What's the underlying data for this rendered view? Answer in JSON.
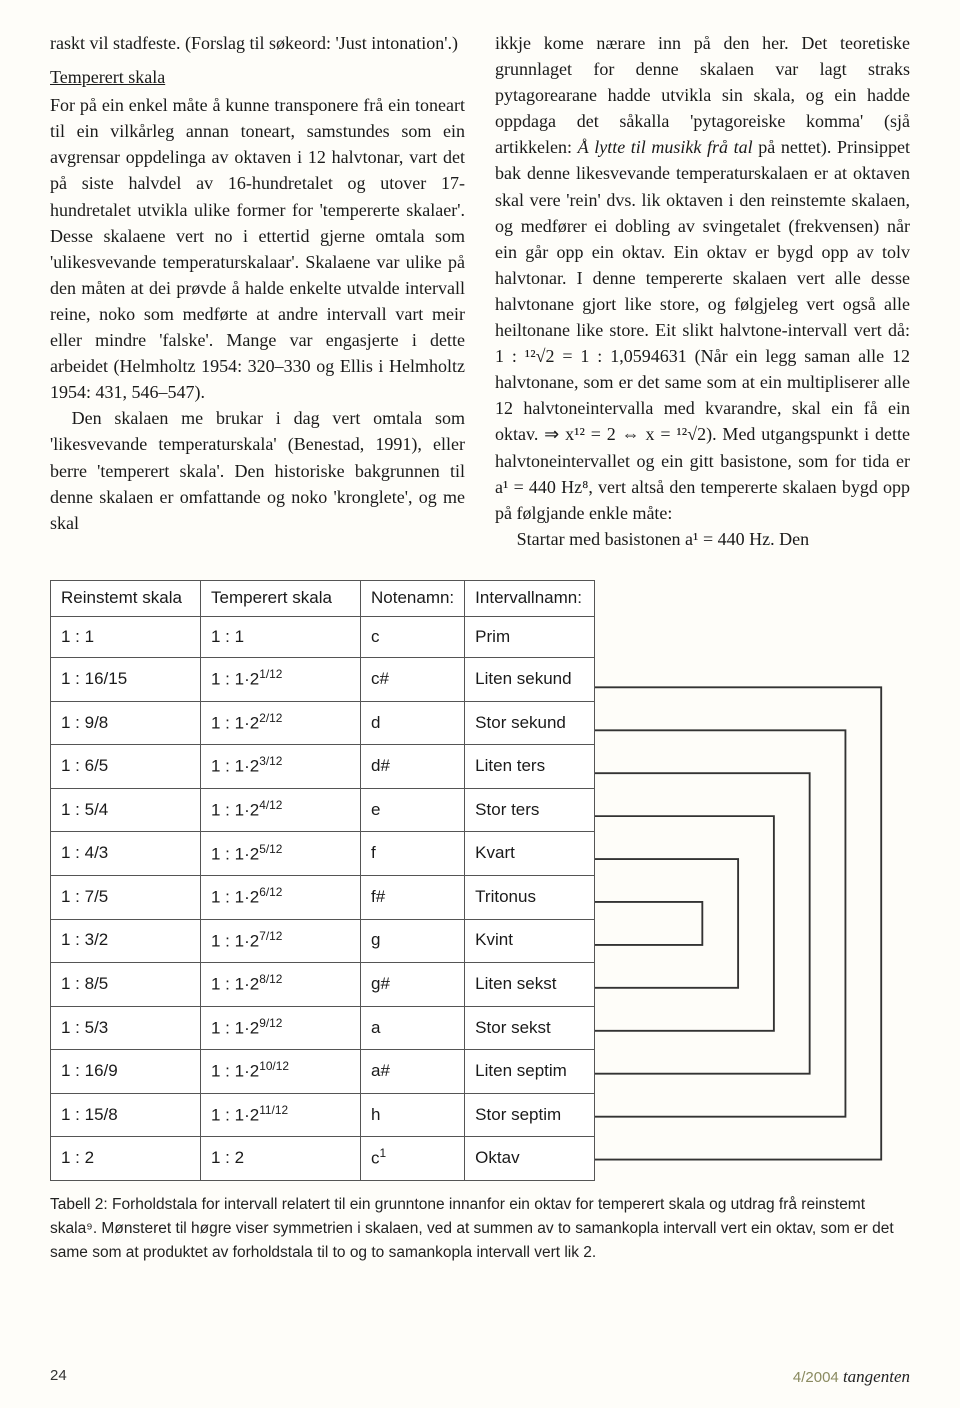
{
  "left": {
    "p1": "raskt vil stadfeste. (Forslag til søkeord: 'Just intonation'.)",
    "heading": "Temperert skala",
    "p2": "For på ein enkel måte å kunne transponere frå ein toneart til ein vilkårleg annan toneart, samstundes som ein avgrensar oppdelinga av oktaven i 12 halvtonar, vart det på siste halvdel av 16-hundretalet og utover 17-hundretalet utvikla ulike former for 'tempererte skalaer'. Desse skalaene vert no i ettertid gjerne omtala som 'ulikesvevande temperaturskalaar'. Skalaene var ulike på den måten at dei prøvde å halde enkelte utvalde intervall reine, noko som medførte at andre intervall vart meir eller mindre 'falske'. Mange var engasjerte i dette arbeidet (Helmholtz 1954: 320–330 og Ellis i Helmholtz 1954: 431, 546–547).",
    "p3": "Den skalaen me brukar i dag vert omtala som 'likesvevande temperaturskala' (Benestad, 1991), eller berre 'temperert skala'. Den historiske bakgrunnen til denne skalaen er omfattande og noko 'kronglete', og me skal"
  },
  "right": {
    "p1a": "ikkje kome nærare inn på den her. Det teoretiske grunnlaget for denne skalaen var lagt straks pytagorearane hadde utvikla sin skala, og ein hadde oppdaga det såkalla 'pytagoreiske komma' (sjå artikkelen: ",
    "p1_ital": "Å lytte til musikk frå tal",
    "p1b": " på nettet). Prinsippet bak denne likesvevande temperaturskalaen er at oktaven skal vere 'rein' dvs. lik oktaven i den reinstemte skalaen, og medfører ei dobling av svingetalet (frekvensen) når ein går opp ein oktav. Ein oktav er bygd opp av tolv halvtonar. I denne tempererte skalaen vert alle desse halvtonane gjort like store, og følgjeleg vert også alle heiltonane like store. Eit slikt halvtone-intervall vert då: 1 : ¹²√2 = 1 : 1,0594631 (Når ein legg saman alle 12 halvtonane, som er det same som at ein multipliserer alle 12 halvtoneintervalla med kvarandre, skal ein få ein oktav. ⇒ x¹² = 2 ⇔ x = ¹²√2). Med utgangspunkt i dette halvtoneintervallet og ein gitt basistone, som for tida er a¹ = 440 Hz⁸, vert altså den tempererte skalaen bygd opp på følgjande enkle måte:",
    "p2": "Startar med basistonen a¹ = 440 Hz. Den"
  },
  "table": {
    "headers": [
      "Reinstemt skala",
      "Temperert skala",
      "Notenamn:",
      "Intervallnamn:"
    ],
    "rows": [
      [
        "1 : 1",
        "1 : 1",
        "c",
        "Prim"
      ],
      [
        "1 : 16/15",
        "1 : 1·2^(1/12)",
        "c#",
        "Liten sekund"
      ],
      [
        "1 : 9/8",
        "1 : 1·2^(2/12)",
        "d",
        "Stor sekund"
      ],
      [
        "1 : 6/5",
        "1 : 1·2^(3/12)",
        "d#",
        "Liten ters"
      ],
      [
        "1 : 5/4",
        "1 : 1·2^(4/12)",
        "e",
        "Stor ters"
      ],
      [
        "1 : 4/3",
        "1 : 1·2^(5/12)",
        "f",
        "Kvart"
      ],
      [
        "1 : 7/5",
        "1 : 1·2^(6/12)",
        "f#",
        "Tritonus"
      ],
      [
        "1 : 3/2",
        "1 : 1·2^(7/12)",
        "g",
        "Kvint"
      ],
      [
        "1 : 8/5",
        "1 : 1·2^(8/12)",
        "g#",
        "Liten sekst"
      ],
      [
        "1 : 5/3",
        "1 : 1·2^(9/12)",
        "a",
        "Stor sekst"
      ],
      [
        "1 : 16/9",
        "1 : 1·2^(10/12)",
        "a#",
        "Liten septim"
      ],
      [
        "1 : 15/8",
        "1 : 1·2^(11/12)",
        "h",
        "Stor septim"
      ],
      [
        "1 : 2",
        "1 : 2",
        "c^1",
        "Oktav"
      ]
    ]
  },
  "caption": "Tabell 2: Forholdstala for intervall relatert til ein grunntone innanfor ein oktav for temperert skala og utdrag frå reinstemt skala⁹. Mønsteret til høgre viser symmetrien i skalaen, ved at summen av to samankopla intervall vert ein oktav, som er det same som at produktet av forholdstala til to og to samankopla intervall vert lik 2.",
  "footer": {
    "page": "24",
    "issue": "4/2004",
    "mag": "tangenten"
  },
  "bracket_stroke": "#333"
}
